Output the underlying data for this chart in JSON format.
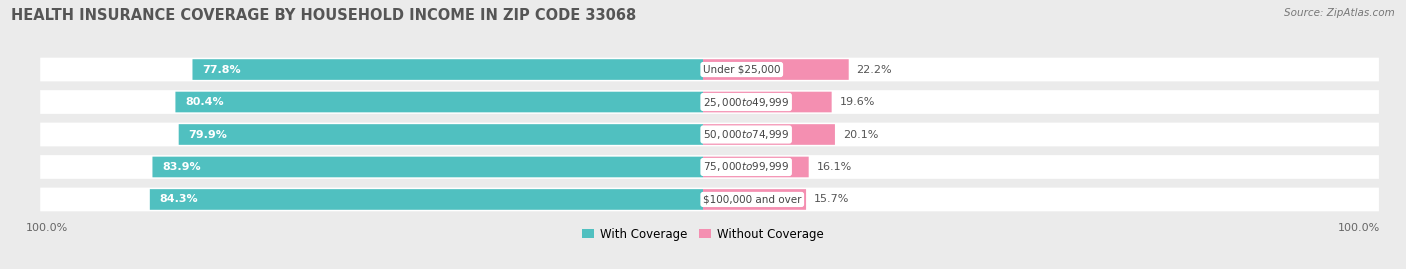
{
  "title": "HEALTH INSURANCE COVERAGE BY HOUSEHOLD INCOME IN ZIP CODE 33068",
  "source": "Source: ZipAtlas.com",
  "categories": [
    "Under $25,000",
    "$25,000 to $49,999",
    "$50,000 to $74,999",
    "$75,000 to $99,999",
    "$100,000 and over"
  ],
  "with_coverage": [
    77.8,
    80.4,
    79.9,
    83.9,
    84.3
  ],
  "without_coverage": [
    22.2,
    19.6,
    20.1,
    16.1,
    15.7
  ],
  "color_coverage": "#50c0c0",
  "color_no_coverage": "#f48fb1",
  "background_color": "#ebebeb",
  "bar_background": "#ffffff",
  "bar_height": 0.62,
  "title_fontsize": 10.5,
  "label_fontsize": 8.0,
  "cat_fontsize": 7.5,
  "legend_fontsize": 8.5,
  "source_fontsize": 7.5
}
